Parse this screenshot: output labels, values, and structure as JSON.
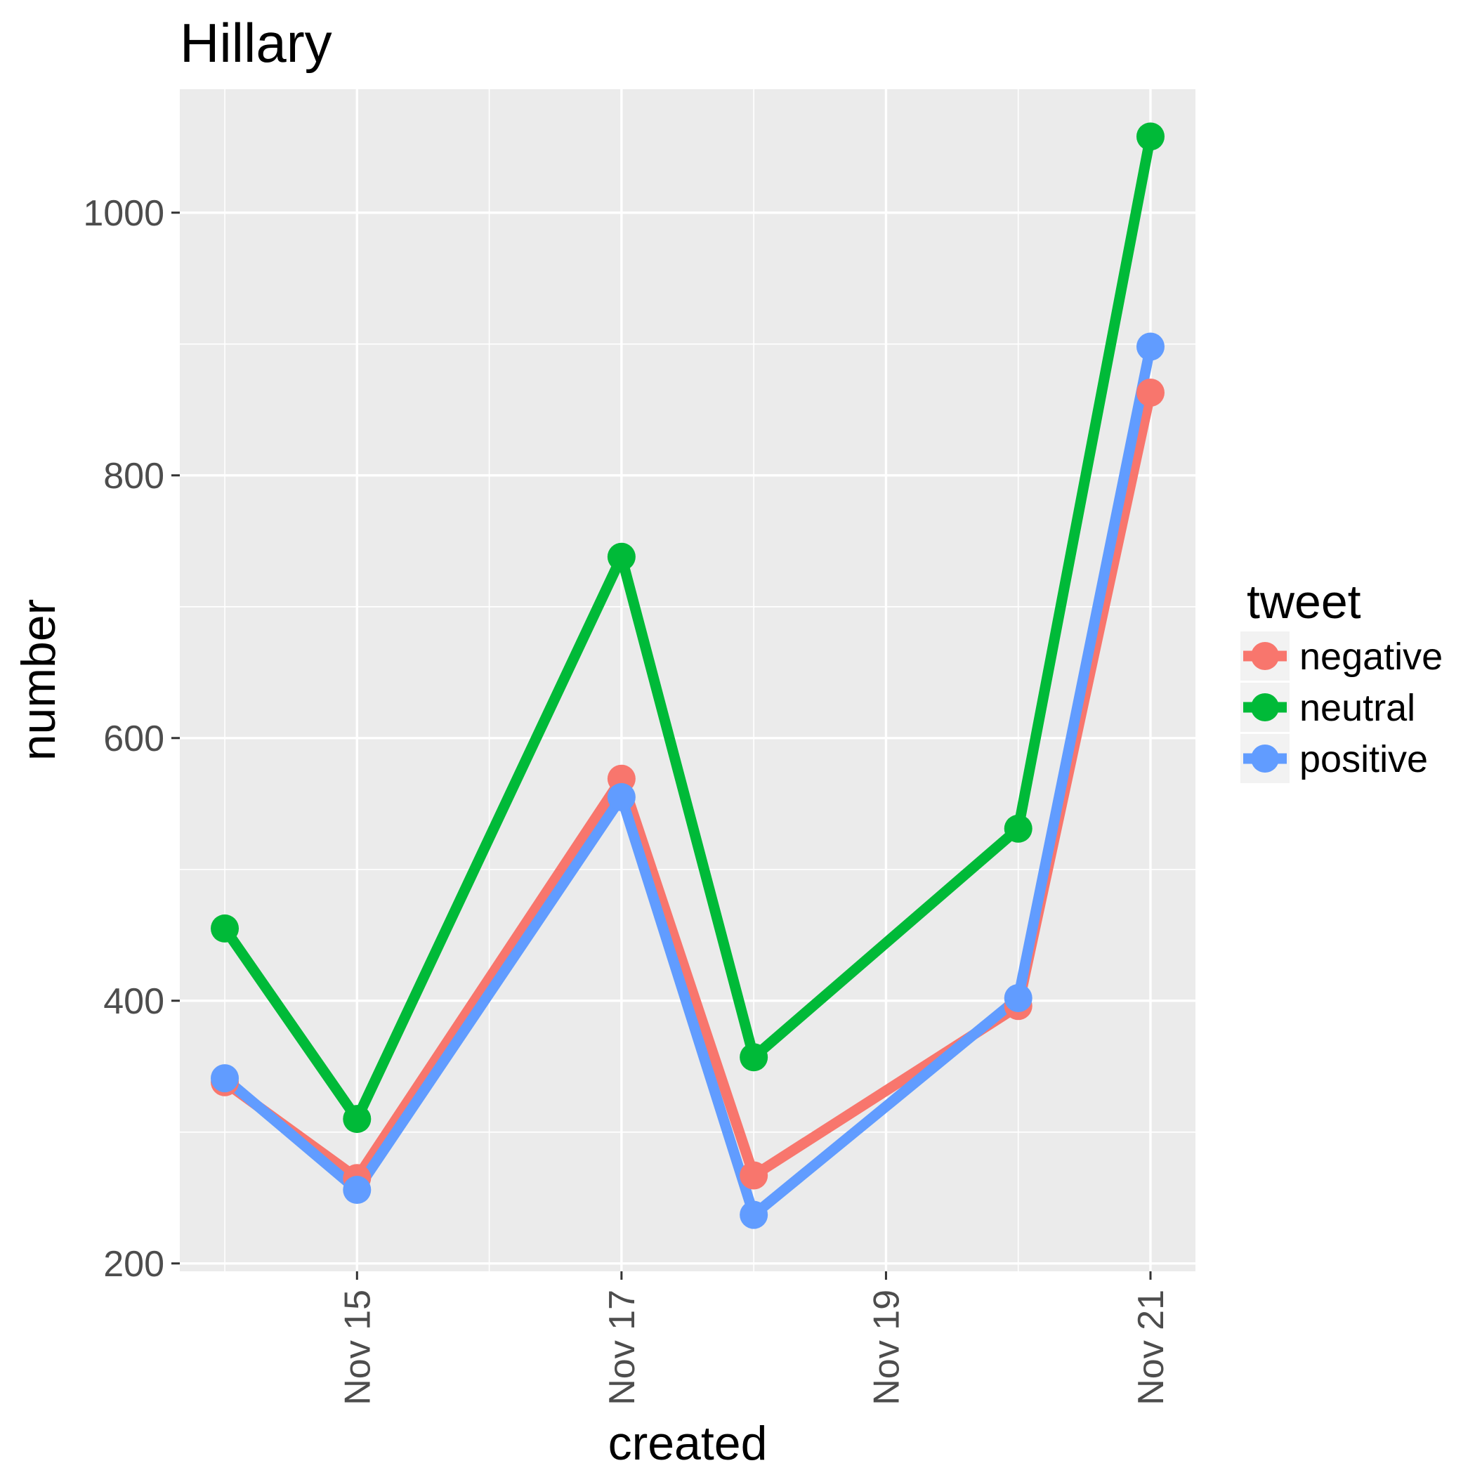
{
  "chart_data": {
    "type": "line",
    "title": "Hillary",
    "xlabel": "created",
    "ylabel": "number",
    "x": [
      "Nov 14",
      "Nov 15",
      "Nov 17",
      "Nov 18",
      "Nov 20",
      "Nov 21"
    ],
    "x_ticks": [
      "Nov 15",
      "Nov 17",
      "Nov 19",
      "Nov 21"
    ],
    "y_ticks": [
      "200",
      "400",
      "600",
      "800",
      "1000"
    ],
    "ylim": [
      194,
      1094
    ],
    "xlim": [
      "Nov 13.66",
      "Nov 21.34"
    ],
    "grid": true,
    "legend": {
      "title": "tweet",
      "position": "right"
    },
    "series": [
      {
        "name": "negative",
        "color": "#F8766D",
        "values": [
          338,
          265,
          569,
          267,
          396,
          863
        ]
      },
      {
        "name": "neutral",
        "color": "#00BA38",
        "values": [
          455,
          310,
          738,
          357,
          531,
          1058
        ]
      },
      {
        "name": "positive",
        "color": "#619CFF",
        "values": [
          341,
          256,
          555,
          237,
          402,
          898
        ]
      }
    ]
  }
}
